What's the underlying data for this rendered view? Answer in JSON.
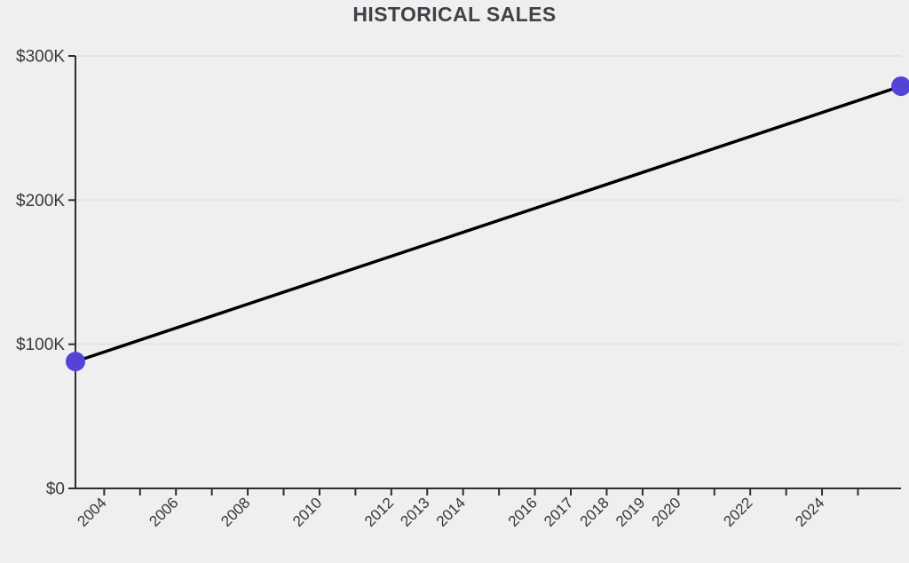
{
  "chart_data": {
    "type": "line",
    "title": "HISTORICAL SALES",
    "xlabel": "",
    "ylabel": "",
    "x_domain": [
      2003.2,
      2026.2
    ],
    "y_domain": [
      0,
      300000
    ],
    "grid": true,
    "legend": "none",
    "colors": {
      "background": "#efefef",
      "line": "#000000",
      "point": "#5343d8",
      "axis": "#2e2e2e",
      "gridline": "#e3e3e3",
      "title_text": "#3d4249",
      "tick_text": "#333538"
    },
    "y_ticks": [
      {
        "value": 0,
        "label": "$0"
      },
      {
        "value": 100000,
        "label": "$100K"
      },
      {
        "value": 200000,
        "label": "$200K"
      },
      {
        "value": 300000,
        "label": "$300K"
      }
    ],
    "x_ticks": [
      {
        "year": 2004,
        "label": "2004"
      },
      {
        "year": 2005,
        "label": ""
      },
      {
        "year": 2006,
        "label": "2006"
      },
      {
        "year": 2007,
        "label": ""
      },
      {
        "year": 2008,
        "label": "2008"
      },
      {
        "year": 2009,
        "label": ""
      },
      {
        "year": 2010,
        "label": "2010"
      },
      {
        "year": 2011,
        "label": ""
      },
      {
        "year": 2012,
        "label": "2012"
      },
      {
        "year": 2013,
        "label": "2013"
      },
      {
        "year": 2014,
        "label": "2014"
      },
      {
        "year": 2015,
        "label": ""
      },
      {
        "year": 2016,
        "label": "2016"
      },
      {
        "year": 2017,
        "label": "2017"
      },
      {
        "year": 2018,
        "label": "2018"
      },
      {
        "year": 2019,
        "label": "2019"
      },
      {
        "year": 2020,
        "label": "2020"
      },
      {
        "year": 2021,
        "label": ""
      },
      {
        "year": 2022,
        "label": "2022"
      },
      {
        "year": 2023,
        "label": ""
      },
      {
        "year": 2024,
        "label": "2024"
      },
      {
        "year": 2025,
        "label": ""
      }
    ],
    "series": [
      {
        "name": "Historical sales",
        "points": [
          {
            "x": 2003.2,
            "value": 88000
          },
          {
            "x": 2026.2,
            "value": 279000
          }
        ]
      }
    ]
  }
}
